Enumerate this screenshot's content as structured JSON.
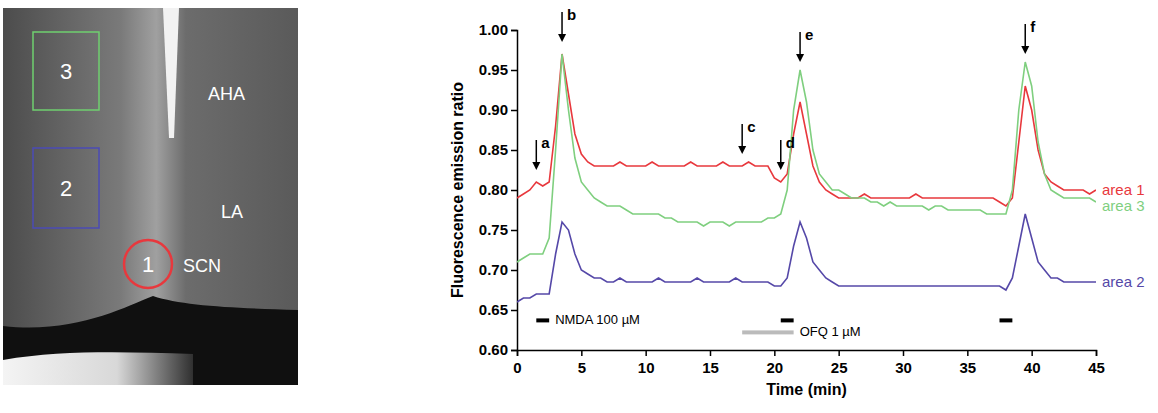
{
  "chart_data": {
    "type": "line",
    "x_label": "Time (min)",
    "y_label": "Fluorescence emission ratio",
    "xlim": [
      0,
      45
    ],
    "xticks": [
      0,
      5,
      10,
      15,
      20,
      25,
      30,
      35,
      40,
      45
    ],
    "ylim": [
      0.6,
      1.0
    ],
    "yticks": [
      {
        "value": 0.6,
        "label": "0.60"
      },
      {
        "value": 0.65,
        "label": "0.65"
      },
      {
        "value": 0.7,
        "label": "0.70"
      },
      {
        "value": 0.75,
        "label": "0.75"
      },
      {
        "value": 0.8,
        "label": "0.80"
      },
      {
        "value": 0.85,
        "label": "0.85"
      },
      {
        "value": 0.9,
        "label": "0.90"
      },
      {
        "value": 0.95,
        "label": "0.95"
      },
      {
        "value": 1.0,
        "label": "1.00"
      }
    ],
    "grid": false,
    "x": [
      0,
      0.5,
      1,
      1.5,
      2,
      2.5,
      3,
      3.5,
      4,
      4.5,
      5,
      5.5,
      6,
      6.5,
      7,
      7.5,
      8,
      8.5,
      9,
      9.5,
      10,
      10.5,
      11,
      11.5,
      12,
      12.5,
      13,
      13.5,
      14,
      14.5,
      15,
      15.5,
      16,
      16.5,
      17,
      17.5,
      18,
      18.5,
      19,
      19.5,
      20,
      20.5,
      21,
      21.5,
      22,
      22.5,
      23,
      23.5,
      24,
      24.5,
      25,
      25.5,
      26,
      26.5,
      27,
      27.5,
      28,
      28.5,
      29,
      29.5,
      30,
      30.5,
      31,
      31.5,
      32,
      32.5,
      33,
      33.5,
      34,
      34.5,
      35,
      35.5,
      36,
      36.5,
      37,
      37.5,
      38,
      38.5,
      39,
      39.5,
      40,
      40.5,
      41,
      41.5,
      42,
      42.5,
      43,
      43.5,
      44,
      44.5,
      45
    ],
    "series": [
      {
        "name": "area 1",
        "color": "#e8383d",
        "values": [
          0.79,
          0.795,
          0.8,
          0.81,
          0.805,
          0.81,
          0.88,
          0.97,
          0.92,
          0.87,
          0.845,
          0.835,
          0.83,
          0.83,
          0.83,
          0.83,
          0.835,
          0.83,
          0.83,
          0.83,
          0.83,
          0.835,
          0.83,
          0.83,
          0.83,
          0.83,
          0.83,
          0.835,
          0.83,
          0.83,
          0.83,
          0.83,
          0.835,
          0.83,
          0.83,
          0.83,
          0.835,
          0.83,
          0.83,
          0.83,
          0.815,
          0.81,
          0.82,
          0.87,
          0.91,
          0.87,
          0.83,
          0.81,
          0.8,
          0.795,
          0.79,
          0.79,
          0.79,
          0.79,
          0.795,
          0.79,
          0.79,
          0.79,
          0.79,
          0.79,
          0.79,
          0.79,
          0.795,
          0.79,
          0.79,
          0.79,
          0.79,
          0.79,
          0.79,
          0.79,
          0.79,
          0.79,
          0.79,
          0.79,
          0.79,
          0.785,
          0.78,
          0.79,
          0.86,
          0.93,
          0.9,
          0.85,
          0.82,
          0.81,
          0.805,
          0.8,
          0.8,
          0.8,
          0.8,
          0.795,
          0.8
        ]
      },
      {
        "name": "area 3",
        "color": "#7fcf7f",
        "values": [
          0.71,
          0.715,
          0.72,
          0.72,
          0.72,
          0.74,
          0.85,
          0.97,
          0.9,
          0.84,
          0.81,
          0.8,
          0.79,
          0.785,
          0.78,
          0.78,
          0.78,
          0.775,
          0.77,
          0.77,
          0.77,
          0.77,
          0.77,
          0.765,
          0.765,
          0.76,
          0.76,
          0.76,
          0.76,
          0.755,
          0.76,
          0.76,
          0.76,
          0.755,
          0.76,
          0.76,
          0.76,
          0.76,
          0.76,
          0.765,
          0.765,
          0.77,
          0.8,
          0.9,
          0.95,
          0.91,
          0.85,
          0.82,
          0.81,
          0.8,
          0.8,
          0.795,
          0.79,
          0.79,
          0.79,
          0.785,
          0.785,
          0.78,
          0.785,
          0.78,
          0.78,
          0.78,
          0.78,
          0.78,
          0.775,
          0.78,
          0.78,
          0.775,
          0.775,
          0.775,
          0.775,
          0.775,
          0.775,
          0.77,
          0.77,
          0.77,
          0.77,
          0.8,
          0.9,
          0.96,
          0.93,
          0.86,
          0.82,
          0.8,
          0.795,
          0.79,
          0.79,
          0.79,
          0.79,
          0.79,
          0.785
        ]
      },
      {
        "name": "area 2",
        "color": "#5548a8",
        "values": [
          0.66,
          0.665,
          0.665,
          0.67,
          0.67,
          0.67,
          0.72,
          0.76,
          0.75,
          0.72,
          0.7,
          0.695,
          0.69,
          0.69,
          0.685,
          0.685,
          0.69,
          0.685,
          0.685,
          0.685,
          0.685,
          0.685,
          0.69,
          0.685,
          0.685,
          0.685,
          0.685,
          0.685,
          0.69,
          0.685,
          0.685,
          0.685,
          0.685,
          0.685,
          0.69,
          0.685,
          0.685,
          0.685,
          0.685,
          0.685,
          0.68,
          0.68,
          0.69,
          0.73,
          0.76,
          0.74,
          0.71,
          0.7,
          0.69,
          0.685,
          0.68,
          0.68,
          0.68,
          0.68,
          0.68,
          0.68,
          0.68,
          0.68,
          0.68,
          0.68,
          0.68,
          0.68,
          0.68,
          0.68,
          0.68,
          0.68,
          0.68,
          0.68,
          0.68,
          0.68,
          0.68,
          0.68,
          0.68,
          0.68,
          0.68,
          0.68,
          0.675,
          0.69,
          0.73,
          0.77,
          0.74,
          0.71,
          0.7,
          0.69,
          0.69,
          0.685,
          0.685,
          0.685,
          0.685,
          0.685,
          0.685
        ]
      }
    ],
    "annotations": [
      {
        "text": "a",
        "x": 1.5,
        "y": 0.825
      },
      {
        "text": "b",
        "x": 3.5,
        "y": 0.985
      },
      {
        "text": "c",
        "x": 17.5,
        "y": 0.845
      },
      {
        "text": "d",
        "x": 20.5,
        "y": 0.825
      },
      {
        "text": "e",
        "x": 22,
        "y": 0.96
      },
      {
        "text": "f",
        "x": 39.5,
        "y": 0.97
      }
    ],
    "treatments": [
      {
        "label": "NMDA 100 µM",
        "color": "#000000",
        "level": 0.637,
        "intervals": [
          [
            1.5,
            2.5
          ],
          [
            20.5,
            21.5
          ],
          [
            37.5,
            38.5
          ]
        ]
      },
      {
        "label": "OFQ 1 µM",
        "color": "#bbbbbb",
        "level": 0.622,
        "intervals": [
          [
            17.5,
            21.5
          ]
        ]
      }
    ]
  },
  "image_panel": {
    "regions": [
      {
        "label": "1",
        "color": "#e8383d"
      },
      {
        "label": "2",
        "color": "#4b4bb5"
      },
      {
        "label": "3",
        "color": "#6fcf6f"
      }
    ],
    "structures": [
      "AHA",
      "LA",
      "SCN"
    ]
  }
}
